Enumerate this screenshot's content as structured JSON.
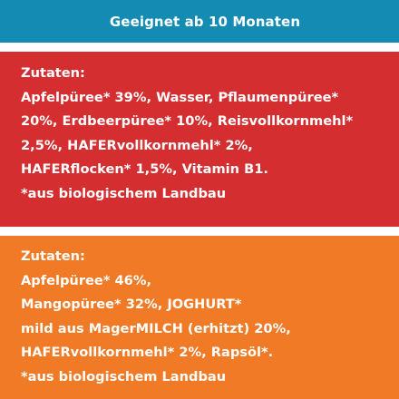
{
  "header": {
    "title": "Geeignet ab 10 Monaten"
  },
  "panels": [
    {
      "color": "#d42e30",
      "lines": [
        "Zutaten:",
        "Apfelpüree* 39%, Wasser, Pflaumenpüree*",
        "20%, Erdbeerpüree* 10%, Reisvollkornmehl*",
        "2,5%, HAFERvollkornmehl* 2%,",
        "HAFERflocken* 1,5%, Vitamin B1.",
        "*aus biologischem Landbau"
      ]
    },
    {
      "color": "#f07a26",
      "lines": [
        "Zutaten:",
        "Apfelpüree* 46%,",
        "Mangopüree* 32%, JOGHURT*",
        "mild aus MagerMILCH (erhitzt) 20%,",
        "HAFERvollkornmehl* 2%, Rapsöl*.",
        "*aus biologischem Landbau"
      ]
    }
  ],
  "colors": {
    "top_band": "#148bb3",
    "red_panel": "#d42e30",
    "orange_panel": "#f07a26",
    "text": "#ffffff"
  }
}
